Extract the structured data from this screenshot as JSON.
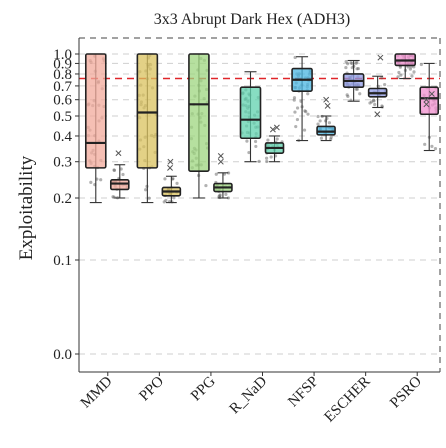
{
  "chart_data": {
    "type": "box",
    "title": "3x3 Abrupt Dark Hex (ADH3)",
    "xlabel": "",
    "ylabel": "Exploitability",
    "y_scale": "log",
    "y_ticks": [
      "0.0",
      "0.1",
      "0.2",
      "0.3",
      "0.4",
      "0.5",
      "0.6",
      "0.7",
      "0.8",
      "0.9",
      "1.0"
    ],
    "ylim": [
      0.0,
      1.0
    ],
    "reference_line": {
      "y": 0.76,
      "color": "#e0262a",
      "style": "dashed"
    },
    "grid": "horizontal dashed",
    "groups": [
      {
        "label": "MMD",
        "boxes": [
          {
            "q1": 0.28,
            "median": 0.37,
            "q3": 1.0,
            "whisker_low": 0.19,
            "whisker_high": 1.0,
            "color": "#f2a99b",
            "outliers": []
          },
          {
            "q1": 0.22,
            "median": 0.235,
            "q3": 0.245,
            "whisker_low": 0.2,
            "whisker_high": 0.29,
            "color": "#f2a99b",
            "outliers": [
              0.33
            ]
          }
        ]
      },
      {
        "label": "PPO",
        "boxes": [
          {
            "q1": 0.28,
            "median": 0.52,
            "q3": 1.0,
            "whisker_low": 0.19,
            "whisker_high": 1.0,
            "color": "#d9c25e",
            "outliers": []
          },
          {
            "q1": 0.205,
            "median": 0.215,
            "q3": 0.225,
            "whisker_low": 0.19,
            "whisker_high": 0.255,
            "color": "#d9c25e",
            "outliers": [
              0.28,
              0.3
            ]
          }
        ]
      },
      {
        "label": "PPG",
        "boxes": [
          {
            "q1": 0.27,
            "median": 0.57,
            "q3": 1.0,
            "whisker_low": 0.2,
            "whisker_high": 1.0,
            "color": "#9ed67f",
            "outliers": []
          },
          {
            "q1": 0.215,
            "median": 0.225,
            "q3": 0.235,
            "whisker_low": 0.2,
            "whisker_high": 0.265,
            "color": "#9ed67f",
            "outliers": [
              0.32,
              0.3
            ]
          }
        ]
      },
      {
        "label": "R_NaD",
        "boxes": [
          {
            "q1": 0.39,
            "median": 0.48,
            "q3": 0.69,
            "whisker_low": 0.3,
            "whisker_high": 0.82,
            "color": "#5fd1ae",
            "outliers": []
          },
          {
            "q1": 0.33,
            "median": 0.35,
            "q3": 0.37,
            "whisker_low": 0.3,
            "whisker_high": 0.4,
            "color": "#5fd1ae",
            "outliers": [
              0.44,
              0.43
            ]
          }
        ]
      },
      {
        "label": "NFSP",
        "boxes": [
          {
            "q1": 0.66,
            "median": 0.75,
            "q3": 0.85,
            "whisker_low": 0.38,
            "whisker_high": 0.97,
            "color": "#4ab6e2",
            "outliers": []
          },
          {
            "q1": 0.405,
            "median": 0.42,
            "q3": 0.445,
            "whisker_low": 0.38,
            "whisker_high": 0.5,
            "color": "#4ab6e2",
            "outliers": [
              0.6,
              0.56
            ]
          }
        ]
      },
      {
        "label": "ESCHER",
        "boxes": [
          {
            "q1": 0.69,
            "median": 0.74,
            "q3": 0.8,
            "whisker_low": 0.59,
            "whisker_high": 0.93,
            "color": "#8f9be6",
            "outliers": []
          },
          {
            "q1": 0.62,
            "median": 0.645,
            "q3": 0.68,
            "whisker_low": 0.55,
            "whisker_high": 0.78,
            "color": "#8f9be6",
            "outliers": [
              0.96,
              0.51
            ]
          }
        ]
      },
      {
        "label": "PSRO",
        "boxes": [
          {
            "q1": 0.88,
            "median": 0.93,
            "q3": 1.0,
            "whisker_low": 0.76,
            "whisker_high": 1.0,
            "color": "#f08fce",
            "outliers": []
          },
          {
            "q1": 0.51,
            "median": 0.61,
            "q3": 0.69,
            "whisker_low": 0.34,
            "whisker_high": 0.9,
            "color": "#f08fce",
            "outliers": [
              0.57,
              0.6,
              0.64
            ]
          }
        ]
      }
    ]
  }
}
